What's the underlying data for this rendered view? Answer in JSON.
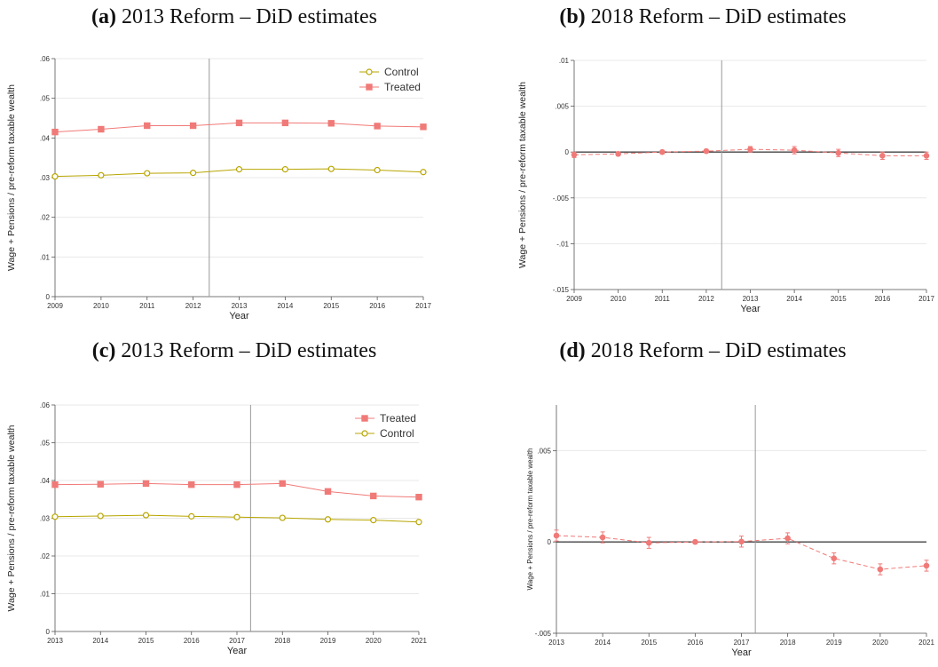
{
  "colors": {
    "control": "#b8a500",
    "treated": "#f07a78",
    "grid": "#e8e8e8",
    "axis": "#555555",
    "vline": "#999999",
    "zero": "#444444"
  },
  "chart_data": [
    {
      "id": "a",
      "panel_label": "(a)",
      "title": "2013 Reform – DiD estimates",
      "type": "line",
      "xlabel": "Year",
      "ylabel": "Wage + Pensions / pre-reform taxable wealth",
      "x": [
        2009,
        2010,
        2011,
        2012,
        2013,
        2014,
        2015,
        2016,
        2017
      ],
      "xlim": [
        2009,
        2017
      ],
      "ylim": [
        0,
        0.06
      ],
      "yticks": [
        0,
        0.01,
        0.02,
        0.03,
        0.04,
        0.05,
        0.06
      ],
      "ytick_labels": [
        "0",
        ".01",
        ".02",
        ".03",
        ".04",
        ".05",
        ".06"
      ],
      "grid": true,
      "vline": 2012.35,
      "legend": {
        "position": "top-right",
        "order": [
          "Control",
          "Treated"
        ]
      },
      "series": [
        {
          "name": "Control",
          "key": "control",
          "values": [
            0.0303,
            0.0306,
            0.0311,
            0.0312,
            0.0321,
            0.0321,
            0.0322,
            0.0319,
            0.0314
          ]
        },
        {
          "name": "Treated",
          "key": "treated",
          "values": [
            0.0415,
            0.0422,
            0.0431,
            0.0431,
            0.0438,
            0.0438,
            0.0437,
            0.043,
            0.0428
          ]
        }
      ]
    },
    {
      "id": "b",
      "panel_label": "(b)",
      "title": "2018 Reform – DiD estimates",
      "type": "line",
      "xlabel": "Year",
      "ylabel": "Wage + Pensions / pre-reform taxable wealth",
      "x": [
        2009,
        2010,
        2011,
        2012,
        2013,
        2014,
        2015,
        2016,
        2017
      ],
      "xlim": [
        2009,
        2017
      ],
      "ylim": [
        -0.015,
        0.01
      ],
      "yticks": [
        -0.015,
        -0.01,
        -0.005,
        0,
        0.005,
        0.01
      ],
      "ytick_labels": [
        "-.015",
        "-.01",
        "-.005",
        "0",
        ".005",
        ".01"
      ],
      "grid": true,
      "vline": 2012.35,
      "zero_line": true,
      "series": [
        {
          "key": "treated",
          "dashed": true,
          "errorbars": true,
          "values": [
            -0.0003,
            -0.0002,
            0.0,
            0.0001,
            0.0003,
            0.0002,
            -0.0001,
            -0.0004,
            -0.0004
          ],
          "ci": [
            0.0003,
            0.0002,
            0.0002,
            0.0002,
            0.0003,
            0.0004,
            0.0004,
            0.0004,
            0.0004
          ]
        }
      ]
    },
    {
      "id": "c",
      "panel_label": "(c)",
      "title": "2013 Reform – DiD estimates",
      "type": "line",
      "xlabel": "Year",
      "ylabel": "Wage + Pensions / pre-reform taxable wealth",
      "x": [
        2013,
        2014,
        2015,
        2016,
        2017,
        2018,
        2019,
        2020,
        2021
      ],
      "xlim": [
        2013,
        2021
      ],
      "ylim": [
        0,
        0.06
      ],
      "yticks": [
        0,
        0.01,
        0.02,
        0.03,
        0.04,
        0.05,
        0.06
      ],
      "ytick_labels": [
        "0",
        ".01",
        ".02",
        ".03",
        ".04",
        ".05",
        ".06"
      ],
      "grid": true,
      "vline": 2017.3,
      "legend": {
        "position": "top-right",
        "order": [
          "Treated",
          "Control"
        ]
      },
      "series": [
        {
          "name": "Treated",
          "key": "treated",
          "values": [
            0.0389,
            0.039,
            0.0392,
            0.0389,
            0.0389,
            0.0392,
            0.0371,
            0.0359,
            0.0356
          ]
        },
        {
          "name": "Control",
          "key": "control",
          "values": [
            0.0304,
            0.0306,
            0.0308,
            0.0305,
            0.0303,
            0.0301,
            0.0297,
            0.0295,
            0.029
          ]
        }
      ]
    },
    {
      "id": "d",
      "panel_label": "(d)",
      "title": "2018 Reform – DiD estimates",
      "type": "line",
      "xlabel": "Year",
      "ylabel": "Wage + Pensions / pre-reform taxable wealth",
      "x": [
        2013,
        2014,
        2015,
        2016,
        2017,
        2018,
        2019,
        2020,
        2021
      ],
      "xlim": [
        2013,
        2021
      ],
      "ylim": [
        -0.005,
        0.0075
      ],
      "yticks": [
        -0.005,
        0,
        0.005
      ],
      "ytick_labels": [
        "-.005",
        "0",
        ".005"
      ],
      "grid": true,
      "vline": 2017.3,
      "zero_line": true,
      "series": [
        {
          "key": "treated",
          "dashed": true,
          "errorbars": true,
          "values": [
            0.00035,
            0.00025,
            -5e-05,
            0.0,
            2e-05,
            0.0002,
            -0.0009,
            -0.0015,
            -0.0013
          ],
          "ci": [
            0.0003,
            0.0003,
            0.0003,
            0.0001,
            0.0003,
            0.0003,
            0.0003,
            0.0003,
            0.0003
          ]
        }
      ]
    }
  ]
}
